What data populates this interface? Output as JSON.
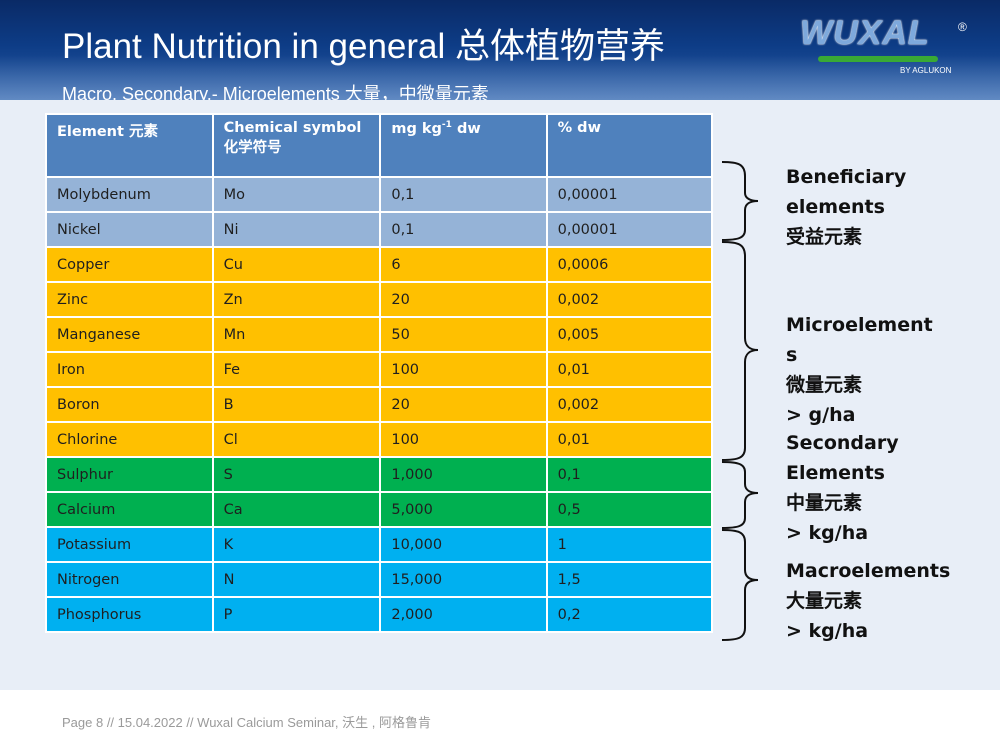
{
  "header": {
    "title": "Plant Nutrition in general  总体植物营养",
    "subtitle": "Macro, Secondary,- Microelements  大量，中微量元素"
  },
  "logo": {
    "text": "WUXAL",
    "registered": "®",
    "byline": "BY AGLUKON"
  },
  "table": {
    "headers": {
      "element": "Element  元素",
      "symbol_line1": "Chemical symbol",
      "symbol_line2": "化学符号",
      "mg_prefix": "mg kg",
      "mg_sup": "-1",
      "mg_suffix": " dw",
      "percent": "% dw"
    },
    "rows": [
      {
        "element": "Molybdenum",
        "symbol": "Mo",
        "mg": "0,1",
        "pct": "0,00001",
        "group": "beneficial"
      },
      {
        "element": "Nickel",
        "symbol": "Ni",
        "mg": "0,1",
        "pct": "0,00001",
        "group": "beneficial"
      },
      {
        "element": "Copper",
        "symbol": "Cu",
        "mg": "6",
        "pct": "0,0006",
        "group": "micro"
      },
      {
        "element": "Zinc",
        "symbol": "Zn",
        "mg": "20",
        "pct": "0,002",
        "group": "micro"
      },
      {
        "element": "Manganese",
        "symbol": "Mn",
        "mg": "50",
        "pct": "0,005",
        "group": "micro"
      },
      {
        "element": "Iron",
        "symbol": "Fe",
        "mg": "100",
        "pct": "0,01",
        "group": "micro"
      },
      {
        "element": "Boron",
        "symbol": "B",
        "mg": "20",
        "pct": "0,002",
        "group": "micro"
      },
      {
        "element": "Chlorine",
        "symbol": "Cl",
        "mg": "100",
        "pct": "0,01",
        "group": "micro"
      },
      {
        "element": "Sulphur",
        "symbol": "S",
        "mg": "1,000",
        "pct": "0,1",
        "group": "secondary"
      },
      {
        "element": "Calcium",
        "symbol": "Ca",
        "mg": "5,000",
        "pct": "0,5",
        "group": "secondary"
      },
      {
        "element": "Potassium",
        "symbol": "K",
        "mg": "10,000",
        "pct": "1",
        "group": "macro"
      },
      {
        "element": "Nitrogen",
        "symbol": "N",
        "mg": "15,000",
        "pct": "1,5",
        "group": "macro"
      },
      {
        "element": "Phosphorus",
        "symbol": "P",
        "mg": "2,000",
        "pct": "0,2",
        "group": "macro"
      }
    ]
  },
  "groups": {
    "beneficial": {
      "line1": "Beneficiary",
      "line2": "elements",
      "line3": "受益元素"
    },
    "micro": {
      "line1": "Microelement",
      "line2": "s",
      "line3": "微量元素",
      "line4": "> g/ha"
    },
    "secondary": {
      "line1": "Secondary",
      "line2": "Elements",
      "line3": "中量元素",
      "line4": "> kg/ha"
    },
    "macro": {
      "line1": "Macroelements",
      "line2": "大量元素",
      "line3": "> kg/ha"
    }
  },
  "colors": {
    "header_row": "#4f81bd",
    "beneficial": "#95b3d7",
    "micro": "#ffc000",
    "secondary": "#00b050",
    "macro": "#00b0f0"
  },
  "footer": {
    "text": "Page 8  //    15.04.2022  //    Wuxal Calcium  Seminar,   沃生 , 阿格鲁肯"
  }
}
